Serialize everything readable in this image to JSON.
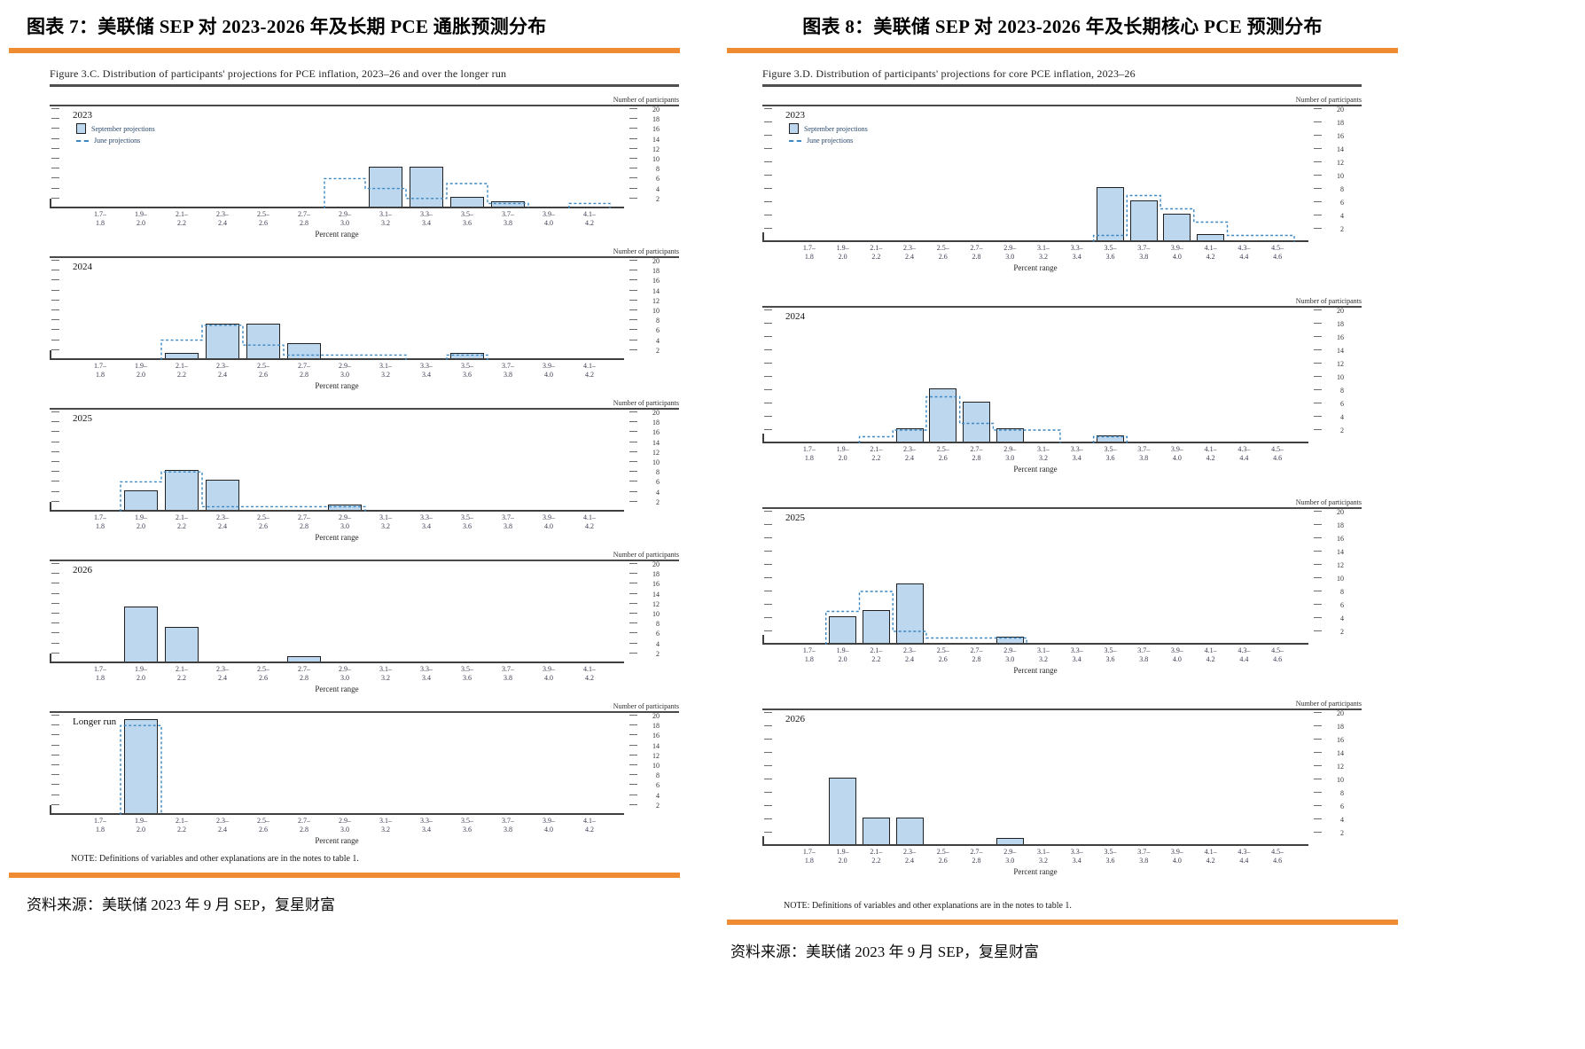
{
  "colors": {
    "accent_orange": "#ee8b33",
    "bar_fill": "#bdd7ee",
    "bar_border": "#202020",
    "june_dash_blue": "#3d88c2",
    "rule_dark": "#4a4a4a"
  },
  "columns": {
    "left": {
      "title": "图表 7：美联储 SEP 对 2023-2026 年及长期 PCE 通胀预测分布",
      "source": "资料来源：美联储 2023 年 9 月 SEP，复星财富"
    },
    "right": {
      "title": "图表 8：美联储 SEP 对 2023-2026 年及长期核心 PCE 预测分布",
      "source": "资料来源：美联储 2023 年 9 月 SEP，复星财富"
    }
  },
  "chart_data": [
    {
      "type": "bar",
      "title": "Figure 3.C. Distribution of participants' projections for PCE inflation, 2023–26 and over the longer run",
      "note": "NOTE: Definitions of variables and other explanations are in the notes to table 1.",
      "xlabel": "Percent range",
      "ylabel": "Number of participants",
      "ylim": [
        0,
        20
      ],
      "yticks": [
        2,
        4,
        6,
        8,
        10,
        12,
        14,
        16,
        18,
        20
      ],
      "grid": false,
      "legend_entries": [
        "September projections",
        "June projections"
      ],
      "legend_position": "top-left of first panel",
      "categories": [
        "1.7–1.8",
        "1.9–2.0",
        "2.1–2.2",
        "2.3–2.4",
        "2.5–2.6",
        "2.7–2.8",
        "2.9–3.0",
        "3.1–3.2",
        "3.3–3.4",
        "3.5–3.6",
        "3.7–3.8",
        "3.9–4.0",
        "4.1–4.2"
      ],
      "panels": [
        {
          "label": "2023",
          "september": [
            0,
            0,
            0,
            0,
            0,
            0,
            0,
            8,
            8,
            2,
            1,
            0,
            0
          ],
          "june": [
            0,
            0,
            0,
            0,
            0,
            0,
            6,
            4,
            2,
            5,
            1,
            0,
            1
          ]
        },
        {
          "label": "2024",
          "september": [
            0,
            0,
            1,
            7,
            7,
            3,
            0,
            0,
            0,
            1,
            0,
            0,
            0
          ],
          "june": [
            0,
            0,
            4,
            7,
            3,
            1,
            1,
            1,
            0,
            1,
            0,
            0,
            0
          ]
        },
        {
          "label": "2025",
          "september": [
            0,
            4,
            8,
            6,
            0,
            0,
            1,
            0,
            0,
            0,
            0,
            0,
            0
          ],
          "june": [
            0,
            6,
            8,
            1,
            1,
            1,
            1,
            0,
            0,
            0,
            0,
            0,
            0
          ]
        },
        {
          "label": "2026",
          "september": [
            0,
            11,
            7,
            0,
            0,
            1,
            0,
            0,
            0,
            0,
            0,
            0,
            0
          ],
          "june": null
        },
        {
          "label": "Longer run",
          "september": [
            0,
            19,
            0,
            0,
            0,
            0,
            0,
            0,
            0,
            0,
            0,
            0,
            0
          ],
          "june": [
            0,
            18,
            0,
            0,
            0,
            0,
            0,
            0,
            0,
            0,
            0,
            0,
            0
          ]
        }
      ]
    },
    {
      "type": "bar",
      "title": "Figure 3.D. Distribution of participants' projections for core PCE inflation, 2023–26",
      "note": "NOTE: Definitions of variables and other explanations are in the notes to table 1.",
      "xlabel": "Percent range",
      "ylabel": "Number of participants",
      "ylim": [
        0,
        20
      ],
      "yticks": [
        2,
        4,
        6,
        8,
        10,
        12,
        14,
        16,
        18,
        20
      ],
      "grid": false,
      "legend_entries": [
        "September projections",
        "June projections"
      ],
      "legend_position": "top-left of first panel",
      "categories": [
        "1.7–1.8",
        "1.9–2.0",
        "2.1–2.2",
        "2.3–2.4",
        "2.5–2.6",
        "2.7–2.8",
        "2.9–3.0",
        "3.1–3.2",
        "3.3–3.4",
        "3.5–3.6",
        "3.7–3.8",
        "3.9–4.0",
        "4.1–4.2",
        "4.3–4.4",
        "4.5–4.6"
      ],
      "panels": [
        {
          "label": "2023",
          "september": [
            0,
            0,
            0,
            0,
            0,
            0,
            0,
            0,
            0,
            8,
            6,
            4,
            1,
            0,
            0
          ],
          "june": [
            0,
            0,
            0,
            0,
            0,
            0,
            0,
            0,
            0,
            1,
            7,
            5,
            3,
            1,
            1
          ]
        },
        {
          "label": "2024",
          "september": [
            0,
            0,
            0,
            2,
            8,
            6,
            2,
            0,
            0,
            1,
            0,
            0,
            0,
            0,
            0
          ],
          "june": [
            0,
            0,
            1,
            2,
            7,
            3,
            2,
            2,
            0,
            1,
            0,
            0,
            0,
            0,
            0
          ]
        },
        {
          "label": "2025",
          "september": [
            0,
            4,
            5,
            9,
            0,
            0,
            1,
            0,
            0,
            0,
            0,
            0,
            0,
            0,
            0
          ],
          "june": [
            0,
            5,
            8,
            2,
            1,
            1,
            1,
            0,
            0,
            0,
            0,
            0,
            0,
            0,
            0
          ]
        },
        {
          "label": "2026",
          "september": [
            0,
            10,
            4,
            4,
            0,
            0,
            1,
            0,
            0,
            0,
            0,
            0,
            0,
            0,
            0
          ],
          "june": null
        }
      ]
    }
  ]
}
